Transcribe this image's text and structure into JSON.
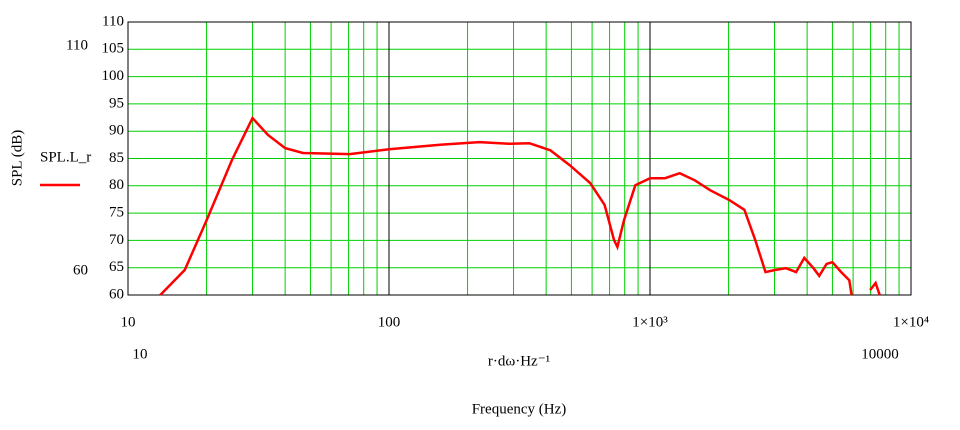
{
  "chart_data": {
    "type": "line",
    "y_axis_label": "SPL (dB)",
    "x_axis_expr": "r·dω·Hz⁻¹",
    "x_axis_label": "Frequency (Hz)",
    "log_x": true,
    "xlim": [
      10,
      10000
    ],
    "ylim": [
      60,
      110
    ],
    "xticks": [
      10,
      100,
      {
        "value": 1000,
        "label": "1×10³"
      },
      {
        "value": 10000,
        "label": "1×10⁴"
      }
    ],
    "x_grid": [
      20,
      30,
      40,
      50,
      60,
      70,
      80,
      90,
      200,
      300,
      400,
      500,
      600,
      700,
      800,
      900,
      2000,
      3000,
      4000,
      5000,
      6000,
      7000,
      8000,
      9000
    ],
    "yticks": [
      60,
      65,
      70,
      75,
      80,
      85,
      90,
      95,
      100,
      105,
      110
    ],
    "y_range_labels": [
      110,
      60
    ],
    "x_range_labels": [
      10,
      10000
    ],
    "grid_color": "#00d000",
    "series": [
      {
        "name": "SPL.L_r",
        "color": "#ff0000",
        "x": [
          13.3,
          16.5,
          20,
          25,
          30,
          34.4,
          40,
          46.8,
          70.7,
          100,
          157,
          222,
          290,
          345,
          415,
          492,
          590,
          670,
          728,
          750,
          795,
          878,
          1000,
          1141,
          1300,
          1485,
          1700,
          2010,
          2300,
          2530,
          2770,
          3030,
          3320,
          3630,
          3900,
          4230,
          4450,
          4750,
          5000,
          5400,
          5800,
          5920,
          6970,
          6970,
          7320,
          7590
        ],
        "values": [
          60,
          64.6,
          73.7,
          84.7,
          92.4,
          89.3,
          86.9,
          86,
          85.8,
          86.7,
          87.5,
          88,
          87.7,
          87.8,
          86.5,
          83.8,
          80.5,
          76.5,
          70.1,
          68.8,
          73.7,
          80.1,
          81.4,
          81.4,
          82.3,
          81,
          79.2,
          77.4,
          75.6,
          70.1,
          64.2,
          64.6,
          64.9,
          64.2,
          66.8,
          64.9,
          63.5,
          65.7,
          66,
          64.2,
          62.7,
          60,
          null,
          60.9,
          62.2,
          60
        ]
      }
    ]
  }
}
